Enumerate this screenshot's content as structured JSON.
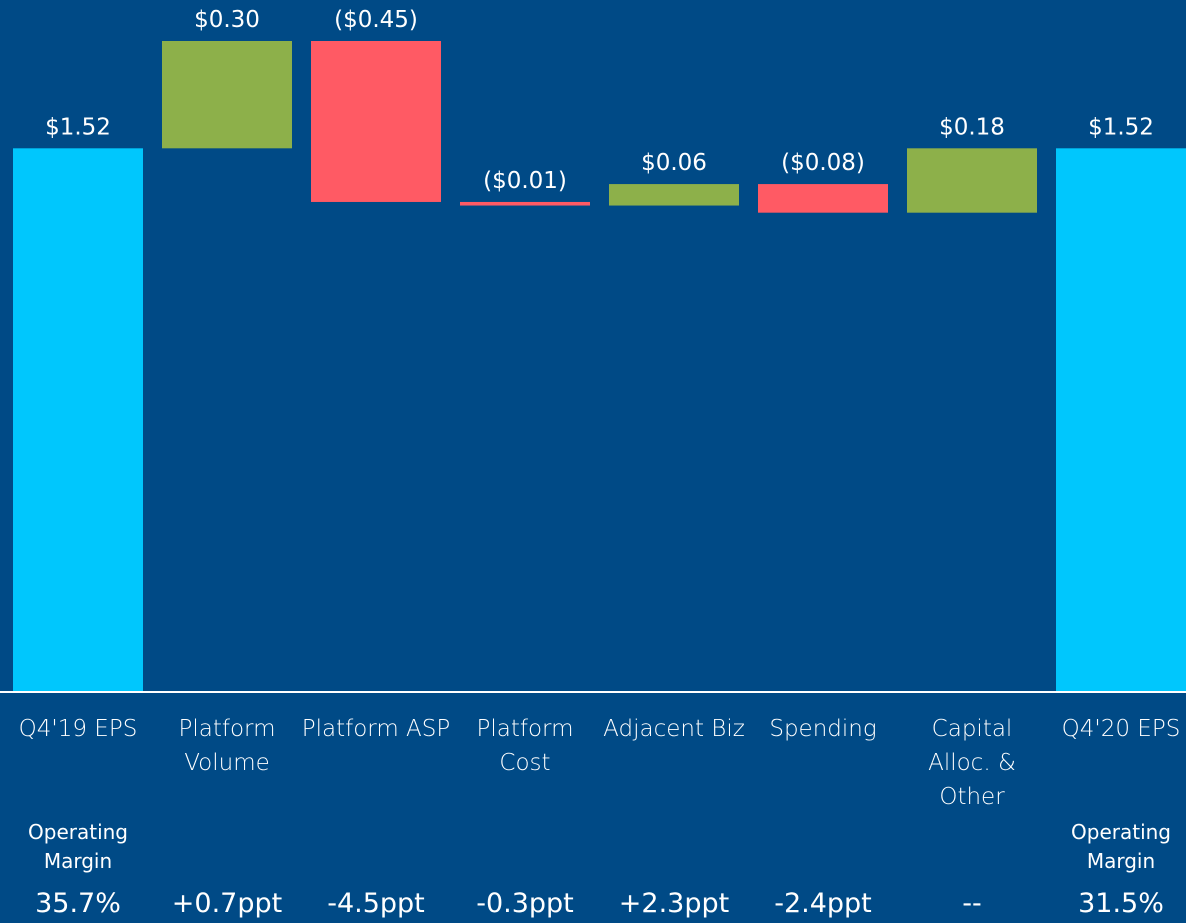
{
  "chart_data": {
    "type": "waterfall",
    "categories": [
      "Q4'19 EPS",
      "Platform Volume",
      "Platform ASP",
      "Platform Cost",
      "Adjacent Biz",
      "Spending",
      "Capital Alloc. & Other",
      "Q4'20 EPS"
    ],
    "values": [
      1.52,
      0.3,
      -0.45,
      -0.01,
      0.06,
      -0.08,
      0.18,
      1.52
    ],
    "value_labels": [
      "$1.52",
      "$0.30",
      "($0.45)",
      "($0.01)",
      "$0.06",
      "($0.08)",
      "$0.18",
      "$1.52"
    ],
    "is_total": [
      true,
      false,
      false,
      false,
      false,
      false,
      false,
      true
    ],
    "colors": {
      "total": "#00c7fd",
      "increase": "#8db04a",
      "decrease": "#ff5a64"
    },
    "operating_margin": {
      "label": "Operating Margin",
      "values": [
        "35.7%",
        "+0.7ppt",
        "-4.5ppt",
        "-0.3ppt",
        "+2.3ppt",
        "-2.4ppt",
        "--",
        "31.5%"
      ]
    }
  }
}
